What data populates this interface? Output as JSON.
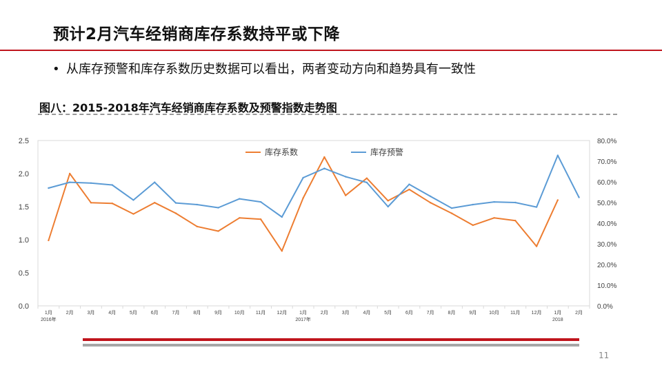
{
  "slide": {
    "title": "预计2月汽车经销商库存系数持平或下降",
    "bullet": "从库存预警和库存系数历史数据可以看出，两者变动方向和趋势具有一致性",
    "page_number": "11"
  },
  "colors": {
    "accent": "#c0141c",
    "series1": "#ED7D31",
    "series2": "#5B9BD5",
    "grid": "#d9d9d9"
  },
  "chart_data": {
    "type": "line",
    "title": "图八：2015-2018年汽车经销商库存系数及预警指数走势图",
    "month_labels": [
      "1月",
      "2月",
      "3月",
      "4月",
      "5月",
      "6月",
      "7月",
      "8月",
      "9月",
      "10月",
      "11月",
      "12月",
      "1月",
      "2月",
      "3月",
      "4月",
      "5月",
      "6月",
      "7月",
      "8月",
      "9月",
      "10月",
      "11月",
      "12月",
      "1月",
      "2月"
    ],
    "year_labels": [
      {
        "index": 0,
        "text": "2016年"
      },
      {
        "index": 12,
        "text": "2017年"
      },
      {
        "index": 24,
        "text": "2018"
      }
    ],
    "left_axis": {
      "ticks": [
        "0.0",
        "0.5",
        "1.0",
        "1.5",
        "2.0",
        "2.5"
      ],
      "min": 0,
      "max": 2.5
    },
    "right_axis": {
      "ticks": [
        "0.0%",
        "10.0%",
        "20.0%",
        "30.0%",
        "40.0%",
        "50.0%",
        "60.0%",
        "70.0%",
        "80.0%"
      ],
      "min": 0,
      "max": 80
    },
    "series": [
      {
        "name": "库存系数",
        "axis": "left",
        "values": [
          0.99,
          2.0,
          1.56,
          1.55,
          1.39,
          1.56,
          1.4,
          1.2,
          1.13,
          1.33,
          1.31,
          0.83,
          1.63,
          2.25,
          1.67,
          1.93,
          1.59,
          1.76,
          1.56,
          1.4,
          1.22,
          1.33,
          1.29,
          0.9,
          1.6,
          null
        ]
      },
      {
        "name": "库存预警",
        "axis": "right",
        "values": [
          57.0,
          59.8,
          59.4,
          58.5,
          51.2,
          59.8,
          49.8,
          49.0,
          47.5,
          51.8,
          50.3,
          43.0,
          62.0,
          66.5,
          62.5,
          59.7,
          48.0,
          58.8,
          53.0,
          47.3,
          49.0,
          50.3,
          50.0,
          47.8,
          72.8,
          52.5
        ]
      }
    ]
  }
}
